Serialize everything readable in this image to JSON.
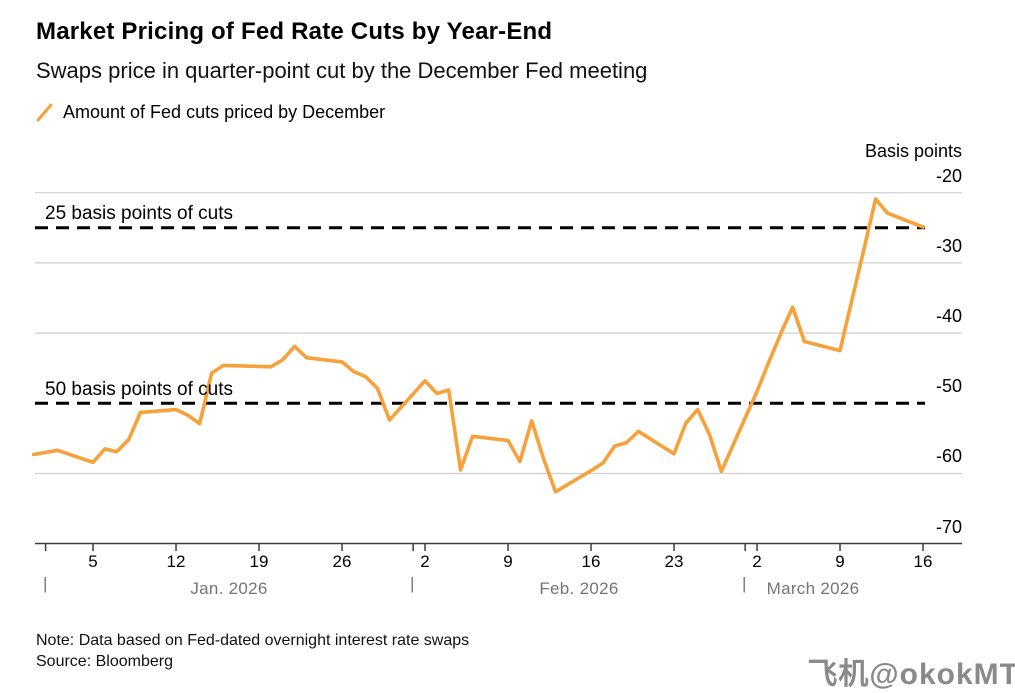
{
  "header": {
    "title": "Market Pricing of Fed Rate Cuts by Year-End",
    "subtitle": "Swaps price in quarter-point cut by the December Fed meeting",
    "legend_label": "Amount of Fed cuts priced by December"
  },
  "chart_data": {
    "type": "line",
    "title": "Market Pricing of Fed Rate Cuts by Year-End",
    "ylabel": "Basis points",
    "ylim": [
      -70,
      -20
    ],
    "grid": true,
    "legend_position": "top-left",
    "colors": {
      "line": "#F7A13B",
      "grid": "#CFCFCF",
      "axis": "#3C3C3C",
      "dashed": "#000000",
      "month": "#757575"
    },
    "y_axis": {
      "title": "Basis points",
      "ticks": [
        -20,
        -30,
        -40,
        -50,
        -60,
        -70
      ]
    },
    "x_axis": {
      "week_ticks": [
        {
          "day": 5,
          "label": "5"
        },
        {
          "day": 12,
          "label": "12"
        },
        {
          "day": 19,
          "label": "19"
        },
        {
          "day": 26,
          "label": "26"
        },
        {
          "day": 33,
          "label": "2"
        },
        {
          "day": 40,
          "label": "9"
        },
        {
          "day": 47,
          "label": "16"
        },
        {
          "day": 54,
          "label": "23"
        },
        {
          "day": 61,
          "label": "2"
        },
        {
          "day": 68,
          "label": "9"
        },
        {
          "day": 75,
          "label": "16"
        }
      ],
      "month_starts": [
        1,
        32,
        60
      ],
      "months": [
        {
          "label": "Jan. 2026",
          "center_day": 16.5
        },
        {
          "label": "Feb. 2026",
          "center_day": 46
        },
        {
          "label": "March 2026",
          "center_day": 65.7
        }
      ]
    },
    "annotations": [
      {
        "label": "25 basis points of cuts",
        "value": -25
      },
      {
        "label": "50 basis points of cuts",
        "value": -50
      }
    ],
    "series": [
      {
        "name": "Amount of Fed cuts priced by December",
        "color": "#F7A13B",
        "points": [
          {
            "date": "Dec 31",
            "day": 0,
            "value": -57.3
          },
          {
            "date": "Jan 2",
            "day": 2,
            "value": -56.7
          },
          {
            "date": "Jan 5",
            "day": 5,
            "value": -58.4
          },
          {
            "date": "Jan 6",
            "day": 6,
            "value": -56.5
          },
          {
            "date": "Jan 7",
            "day": 7,
            "value": -56.9
          },
          {
            "date": "Jan 8",
            "day": 8,
            "value": -55.2
          },
          {
            "date": "Jan 9",
            "day": 9,
            "value": -51.3
          },
          {
            "date": "Jan 12",
            "day": 12,
            "value": -50.9
          },
          {
            "date": "Jan 13",
            "day": 13,
            "value": -51.7
          },
          {
            "date": "Jan 14",
            "day": 14,
            "value": -52.9
          },
          {
            "date": "Jan 15",
            "day": 15,
            "value": -45.7
          },
          {
            "date": "Jan 16",
            "day": 16,
            "value": -44.6
          },
          {
            "date": "Jan 20",
            "day": 20,
            "value": -44.8
          },
          {
            "date": "Jan 21",
            "day": 21,
            "value": -43.8
          },
          {
            "date": "Jan 22",
            "day": 22,
            "value": -41.9
          },
          {
            "date": "Jan 23",
            "day": 23,
            "value": -43.5
          },
          {
            "date": "Jan 26",
            "day": 26,
            "value": -44.1
          },
          {
            "date": "Jan 27",
            "day": 27,
            "value": -45.5
          },
          {
            "date": "Jan 28",
            "day": 28,
            "value": -46.2
          },
          {
            "date": "Jan 29",
            "day": 29,
            "value": -47.9
          },
          {
            "date": "Jan 30",
            "day": 30,
            "value": -52.4
          },
          {
            "date": "Feb 2",
            "day": 33,
            "value": -46.8
          },
          {
            "date": "Feb 3",
            "day": 34,
            "value": -48.6
          },
          {
            "date": "Feb 4",
            "day": 35,
            "value": -48.1
          },
          {
            "date": "Feb 5",
            "day": 36,
            "value": -59.5
          },
          {
            "date": "Feb 6",
            "day": 37,
            "value": -54.7
          },
          {
            "date": "Feb 9",
            "day": 40,
            "value": -55.3
          },
          {
            "date": "Feb 10",
            "day": 41,
            "value": -58.3
          },
          {
            "date": "Feb 11",
            "day": 42,
            "value": -52.5
          },
          {
            "date": "Feb 12",
            "day": 43,
            "value": -57.9
          },
          {
            "date": "Feb 13",
            "day": 44,
            "value": -62.6
          },
          {
            "date": "Feb 16",
            "day": 47,
            "value": -59.6
          },
          {
            "date": "Feb 17",
            "day": 48,
            "value": -58.5
          },
          {
            "date": "Feb 18",
            "day": 49,
            "value": -56.1
          },
          {
            "date": "Feb 19",
            "day": 50,
            "value": -55.6
          },
          {
            "date": "Feb 20",
            "day": 51,
            "value": -54.0
          },
          {
            "date": "Feb 23",
            "day": 54,
            "value": -57.2
          },
          {
            "date": "Feb 24",
            "day": 55,
            "value": -52.8
          },
          {
            "date": "Feb 25",
            "day": 56,
            "value": -50.9
          },
          {
            "date": "Feb 26",
            "day": 57,
            "value": -54.5
          },
          {
            "date": "Feb 27",
            "day": 58,
            "value": -59.7
          },
          {
            "date": "Mar 2",
            "day": 61,
            "value": -48.3
          },
          {
            "date": "Mar 3",
            "day": 62,
            "value": -44.1
          },
          {
            "date": "Mar 4",
            "day": 63,
            "value": -40.1
          },
          {
            "date": "Mar 5",
            "day": 64,
            "value": -36.3
          },
          {
            "date": "Mar 6",
            "day": 65,
            "value": -41.2
          },
          {
            "date": "Mar 9",
            "day": 68,
            "value": -42.5
          },
          {
            "date": "Mar 10",
            "day": 69,
            "value": -35.3
          },
          {
            "date": "Mar 11",
            "day": 70,
            "value": -28.2
          },
          {
            "date": "Mar 12",
            "day": 71,
            "value": -20.9
          },
          {
            "date": "Mar 13",
            "day": 72,
            "value": -22.9
          },
          {
            "date": "Mar 16",
            "day": 75,
            "value": -24.9
          }
        ]
      }
    ]
  },
  "footer": {
    "note": "Note: Data based on Fed-dated overnight interest rate swaps",
    "source": "Source: Bloomberg",
    "watermark": "飞机@okokMT"
  }
}
